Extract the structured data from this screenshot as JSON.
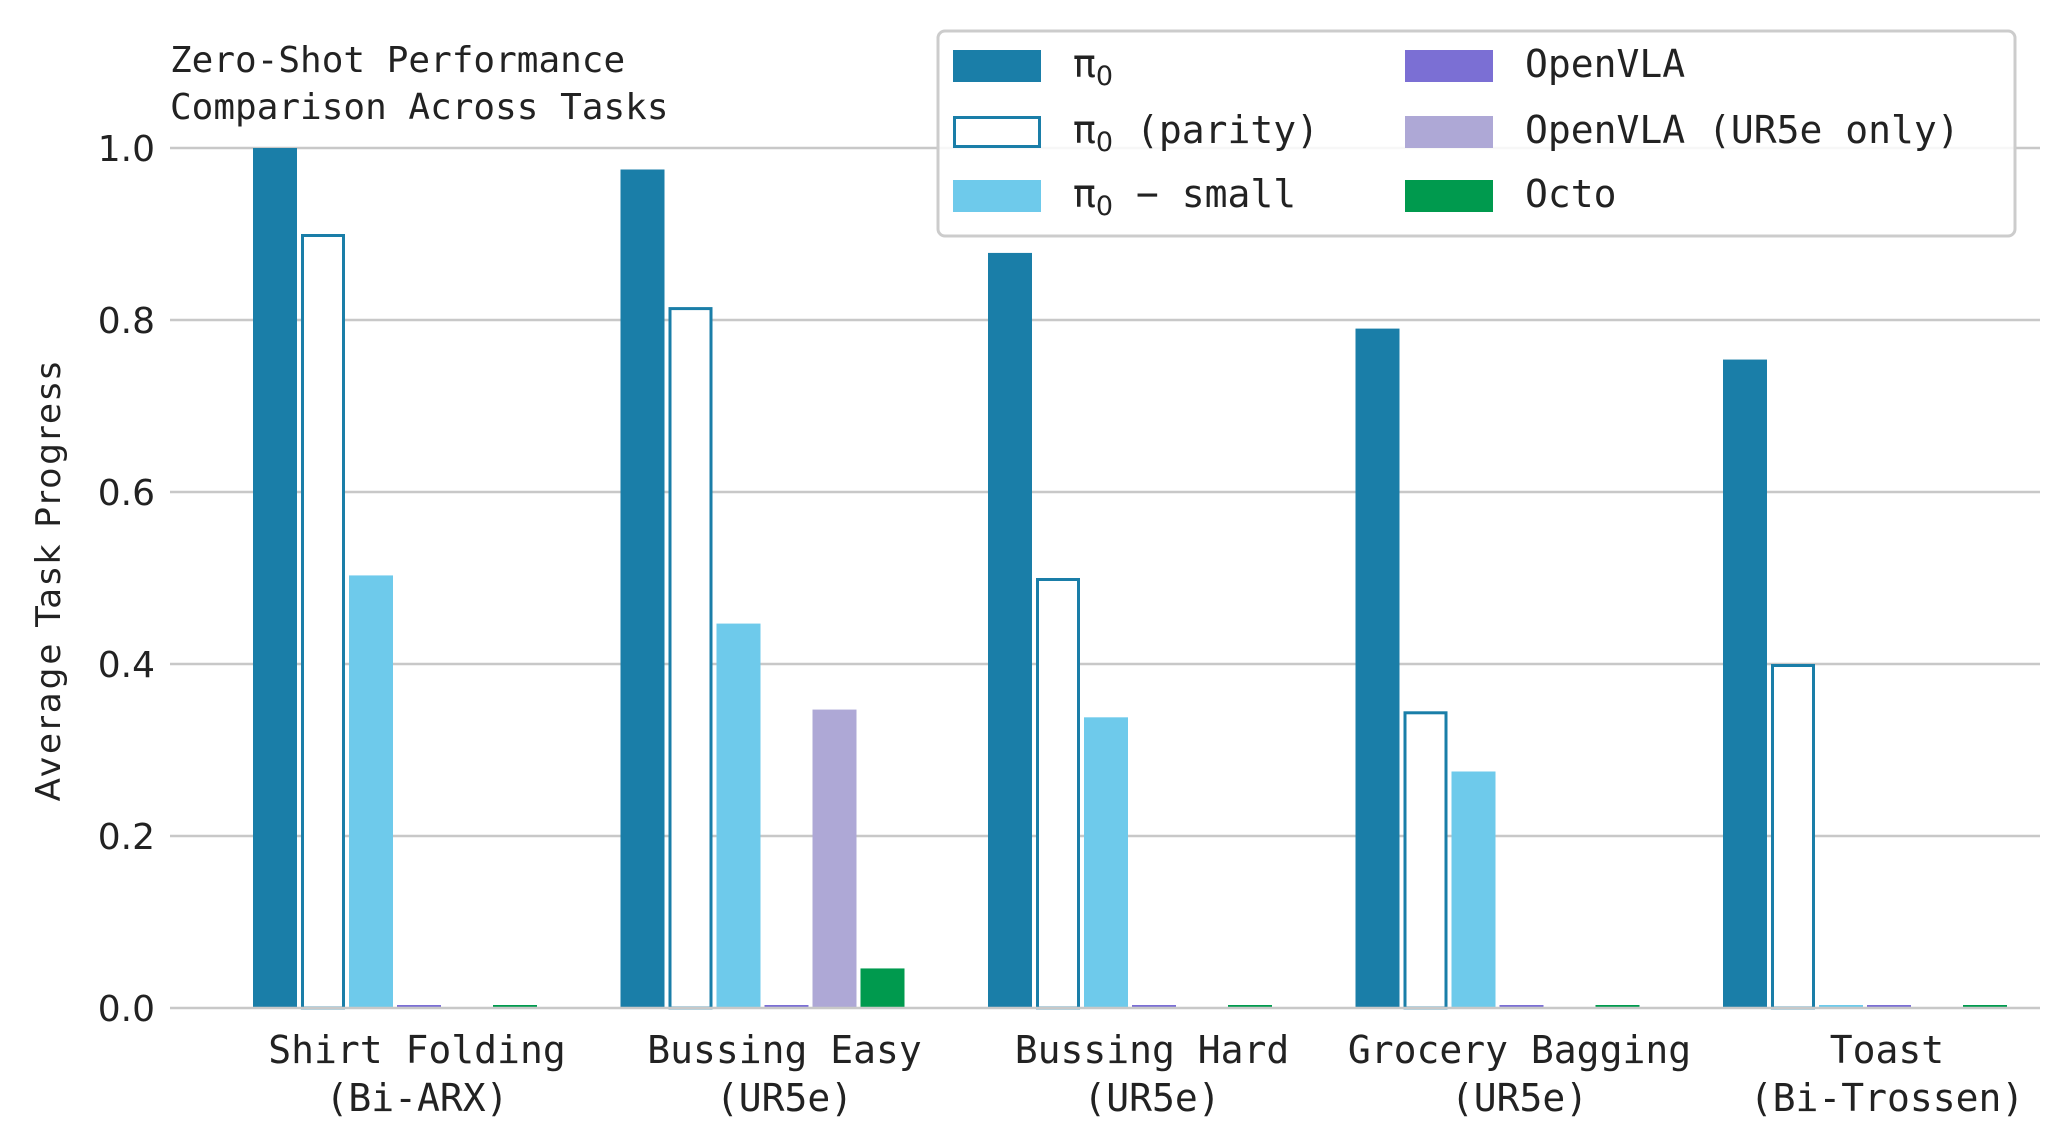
{
  "chart_data": {
    "type": "bar",
    "title_lines": [
      "Zero-Shot Performance",
      "Comparison Across Tasks"
    ],
    "xlabel": "",
    "ylabel": "Average Task Progress",
    "ylim": [
      0,
      1.0
    ],
    "yticks": [
      "0.0",
      "0.2",
      "0.4",
      "0.6",
      "0.8",
      "1.0"
    ],
    "grid": true,
    "legend_position": "top-right",
    "categories": [
      [
        "Shirt Folding",
        "(Bi-ARX)"
      ],
      [
        "Bussing Easy",
        "(UR5e)"
      ],
      [
        "Bussing Hard",
        "(UR5e)"
      ],
      [
        "Grocery Bagging",
        "(UR5e)"
      ],
      [
        "Toast",
        "(Bi-Trossen)"
      ]
    ],
    "series": [
      {
        "name": "π0",
        "name_base": "π",
        "name_sub": "0",
        "name_suffix": "",
        "style": "filled",
        "color": "#1a7ea8",
        "values": [
          1.0,
          0.975,
          0.878,
          0.79,
          0.754
        ]
      },
      {
        "name": "π0 (parity)",
        "name_base": "π",
        "name_sub": "0",
        "name_suffix": " (parity)",
        "style": "outline",
        "color": "#1a7ea8",
        "values": [
          0.9,
          0.815,
          0.5,
          0.345,
          0.4
        ]
      },
      {
        "name": "π0 − small",
        "name_base": "π",
        "name_sub": "0",
        "name_suffix": " − small",
        "style": "filled",
        "color": "#6ecaeb",
        "values": [
          0.503,
          0.447,
          0.338,
          0.275,
          0.003
        ]
      },
      {
        "name": "OpenVLA",
        "name_base": "OpenVLA",
        "name_sub": "",
        "name_suffix": "",
        "style": "filled",
        "color": "#7b6fd4",
        "values": [
          0.003,
          0.003,
          0.003,
          0.003,
          0.003
        ]
      },
      {
        "name": "OpenVLA (UR5e only)",
        "name_base": "OpenVLA (UR5e only)",
        "name_sub": "",
        "name_suffix": "",
        "style": "filled",
        "color": "#aea8d6",
        "values": [
          null,
          0.347,
          null,
          null,
          null
        ]
      },
      {
        "name": "Octo",
        "name_base": "Octo",
        "name_sub": "",
        "name_suffix": "",
        "style": "filled",
        "color": "#009a4e",
        "values": [
          0.003,
          0.046,
          0.003,
          0.003,
          0.003
        ]
      }
    ]
  }
}
